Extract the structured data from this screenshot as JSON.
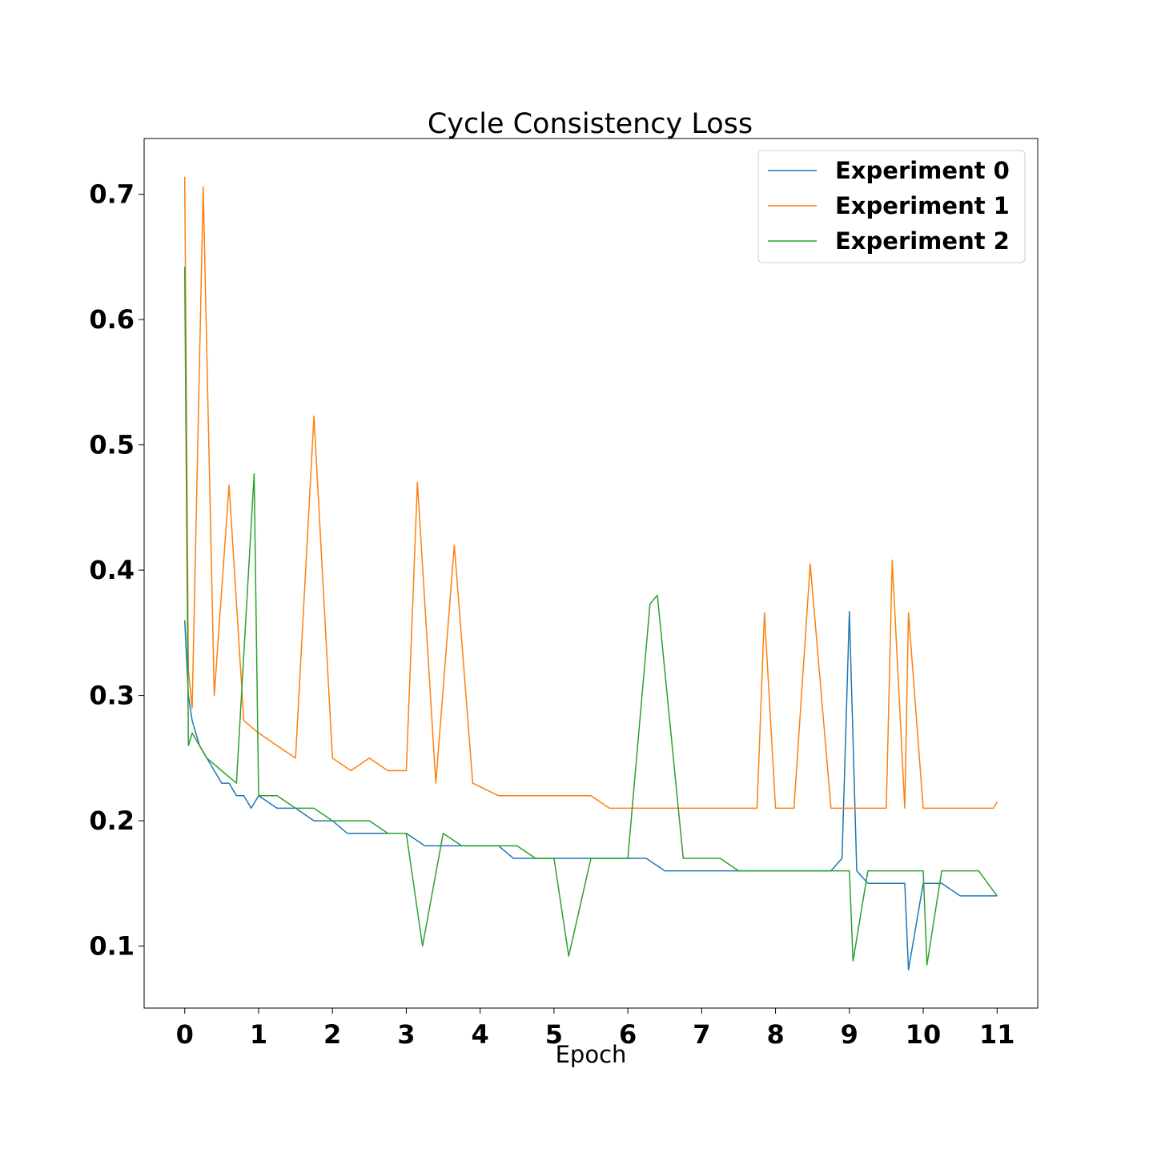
{
  "chart_data": {
    "type": "line",
    "title": "Cycle Consistency Loss",
    "xlabel": "Epoch",
    "ylabel": "",
    "xlim": [
      -0.55,
      11.55
    ],
    "ylim": [
      0.0505,
      0.7445
    ],
    "xticks": [
      "0",
      "1",
      "2",
      "3",
      "4",
      "5",
      "6",
      "7",
      "8",
      "9",
      "10",
      "11"
    ],
    "yticks": [
      "0.1",
      "0.2",
      "0.3",
      "0.4",
      "0.5",
      "0.6",
      "0.7"
    ],
    "grid": false,
    "legend_position": "upper right",
    "series": [
      {
        "name": "Experiment 0",
        "color": "#1f77b4",
        "x": [
          0.0,
          0.05,
          0.1,
          0.2,
          0.3,
          0.4,
          0.5,
          0.6,
          0.7,
          0.8,
          0.9,
          1.0,
          1.25,
          1.5,
          1.75,
          2.0,
          2.2,
          2.5,
          2.75,
          3.0,
          3.25,
          3.5,
          3.75,
          4.0,
          4.25,
          4.45,
          4.75,
          5.0,
          5.25,
          5.5,
          5.75,
          6.0,
          6.25,
          6.5,
          6.75,
          7.0,
          7.25,
          7.5,
          7.75,
          8.0,
          8.25,
          8.5,
          8.75,
          8.9,
          9.0,
          9.1,
          9.25,
          9.5,
          9.75,
          9.8,
          10.0,
          10.25,
          10.5,
          10.65,
          10.75,
          11.0
        ],
        "y": [
          0.36,
          0.3,
          0.28,
          0.26,
          0.25,
          0.24,
          0.23,
          0.23,
          0.22,
          0.22,
          0.21,
          0.22,
          0.21,
          0.21,
          0.2,
          0.2,
          0.19,
          0.19,
          0.19,
          0.19,
          0.18,
          0.18,
          0.18,
          0.18,
          0.18,
          0.17,
          0.17,
          0.17,
          0.17,
          0.17,
          0.17,
          0.17,
          0.17,
          0.16,
          0.16,
          0.16,
          0.16,
          0.16,
          0.16,
          0.16,
          0.16,
          0.16,
          0.16,
          0.17,
          0.367,
          0.16,
          0.15,
          0.15,
          0.15,
          0.081,
          0.15,
          0.15,
          0.14,
          0.14,
          0.14,
          0.14
        ]
      },
      {
        "name": "Experiment 1",
        "color": "#ff7f0e",
        "x": [
          0.0,
          0.05,
          0.1,
          0.25,
          0.4,
          0.6,
          0.8,
          1.0,
          1.25,
          1.5,
          1.75,
          2.0,
          2.25,
          2.5,
          2.75,
          3.0,
          3.15,
          3.4,
          3.65,
          3.9,
          4.25,
          4.5,
          4.75,
          5.0,
          5.25,
          5.5,
          5.75,
          6.0,
          6.25,
          6.5,
          6.75,
          7.0,
          7.25,
          7.5,
          7.75,
          7.85,
          8.0,
          8.25,
          8.47,
          8.75,
          9.0,
          9.25,
          9.5,
          9.58,
          9.75,
          9.8,
          10.0,
          10.25,
          10.5,
          10.75,
          10.95,
          11.0
        ],
        "y": [
          0.714,
          0.32,
          0.29,
          0.706,
          0.3,
          0.468,
          0.28,
          0.27,
          0.26,
          0.25,
          0.523,
          0.25,
          0.24,
          0.25,
          0.24,
          0.24,
          0.47,
          0.23,
          0.42,
          0.23,
          0.22,
          0.22,
          0.22,
          0.22,
          0.22,
          0.22,
          0.21,
          0.21,
          0.21,
          0.21,
          0.21,
          0.21,
          0.21,
          0.21,
          0.21,
          0.366,
          0.21,
          0.21,
          0.405,
          0.21,
          0.21,
          0.21,
          0.21,
          0.408,
          0.21,
          0.366,
          0.21,
          0.21,
          0.21,
          0.21,
          0.21,
          0.215
        ]
      },
      {
        "name": "Experiment 2",
        "color": "#2ca02c",
        "x": [
          0.0,
          0.05,
          0.1,
          0.2,
          0.3,
          0.5,
          0.7,
          0.94,
          1.0,
          1.25,
          1.5,
          1.75,
          2.0,
          2.25,
          2.5,
          2.75,
          3.0,
          3.22,
          3.5,
          3.75,
          4.0,
          4.25,
          4.5,
          4.75,
          5.0,
          5.2,
          5.5,
          5.75,
          6.0,
          6.3,
          6.4,
          6.75,
          7.0,
          7.25,
          7.5,
          7.75,
          8.0,
          8.25,
          8.5,
          8.75,
          9.0,
          9.05,
          9.25,
          9.5,
          9.75,
          10.0,
          10.05,
          10.25,
          10.5,
          10.75,
          11.0
        ],
        "y": [
          0.642,
          0.26,
          0.27,
          0.26,
          0.25,
          0.24,
          0.23,
          0.477,
          0.22,
          0.22,
          0.21,
          0.21,
          0.2,
          0.2,
          0.2,
          0.19,
          0.19,
          0.1,
          0.19,
          0.18,
          0.18,
          0.18,
          0.18,
          0.17,
          0.17,
          0.092,
          0.17,
          0.17,
          0.17,
          0.373,
          0.38,
          0.17,
          0.17,
          0.17,
          0.16,
          0.16,
          0.16,
          0.16,
          0.16,
          0.16,
          0.16,
          0.088,
          0.16,
          0.16,
          0.16,
          0.16,
          0.085,
          0.16,
          0.16,
          0.16,
          0.14
        ]
      }
    ]
  }
}
